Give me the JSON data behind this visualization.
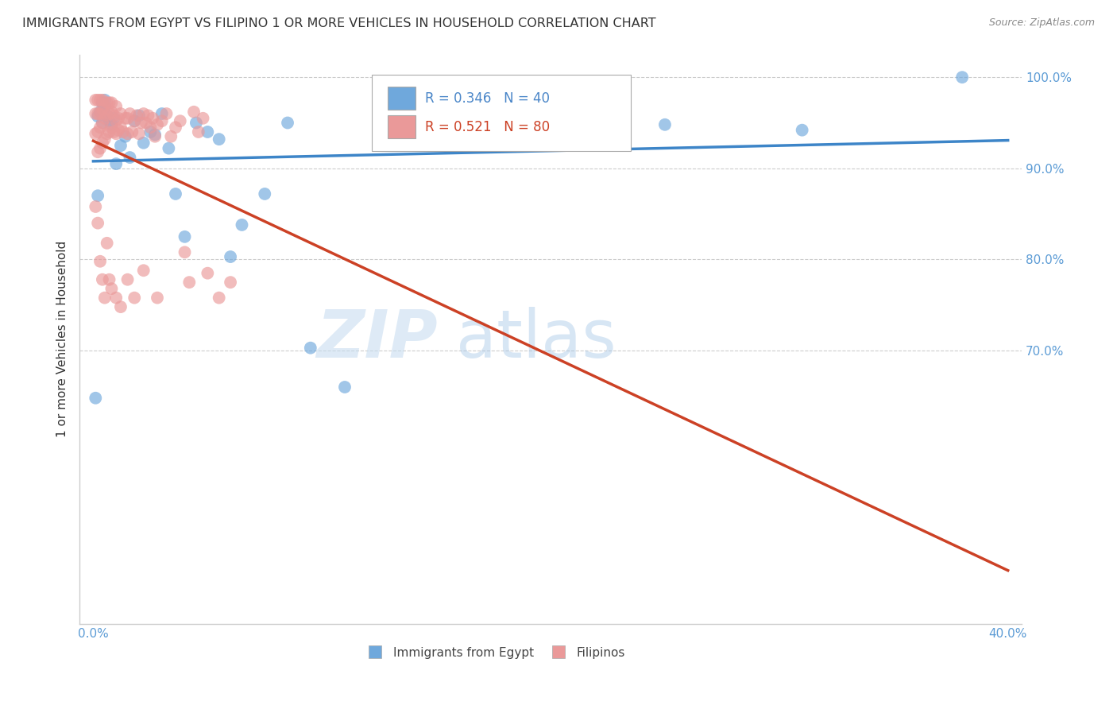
{
  "title": "IMMIGRANTS FROM EGYPT VS FILIPINO 1 OR MORE VEHICLES IN HOUSEHOLD CORRELATION CHART",
  "source": "Source: ZipAtlas.com",
  "ylabel": "1 or more Vehicles in Household",
  "x_min": 0.0,
  "x_max": 0.4,
  "y_min": 0.4,
  "y_max": 1.02,
  "x_tick_positions": [
    0.0,
    0.05,
    0.1,
    0.15,
    0.2,
    0.25,
    0.3,
    0.35,
    0.4
  ],
  "x_tick_labels": [
    "0.0%",
    "",
    "",
    "",
    "",
    "",
    "",
    "",
    "40.0%"
  ],
  "y_tick_positions": [
    0.7,
    0.8,
    0.9,
    1.0
  ],
  "y_tick_labels": [
    "70.0%",
    "80.0%",
    "90.0%",
    "100.0%"
  ],
  "blue_color": "#6fa8dc",
  "pink_color": "#ea9999",
  "blue_line_color": "#3d85c8",
  "pink_line_color": "#cc4125",
  "legend_text_blue": "#4a86c8",
  "legend_text_pink": "#cc4125",
  "grid_color": "#cccccc",
  "blue_R": 0.346,
  "blue_N": 40,
  "pink_R": 0.521,
  "pink_N": 80,
  "blue_x": [
    0.001,
    0.002,
    0.002,
    0.003,
    0.004,
    0.004,
    0.005,
    0.005,
    0.006,
    0.007,
    0.008,
    0.009,
    0.01,
    0.012,
    0.014,
    0.016,
    0.018,
    0.02,
    0.022,
    0.025,
    0.027,
    0.03,
    0.033,
    0.036,
    0.04,
    0.045,
    0.05,
    0.055,
    0.06,
    0.065,
    0.075,
    0.085,
    0.095,
    0.11,
    0.13,
    0.16,
    0.2,
    0.25,
    0.31,
    0.38
  ],
  "blue_y": [
    0.648,
    0.87,
    0.957,
    0.962,
    0.972,
    0.95,
    0.968,
    0.975,
    0.958,
    0.952,
    0.948,
    0.955,
    0.905,
    0.925,
    0.935,
    0.912,
    0.952,
    0.958,
    0.928,
    0.94,
    0.937,
    0.96,
    0.922,
    0.872,
    0.825,
    0.95,
    0.94,
    0.932,
    0.803,
    0.838,
    0.872,
    0.95,
    0.703,
    0.66,
    0.942,
    0.942,
    0.945,
    0.948,
    0.942,
    1.0
  ],
  "pink_x": [
    0.001,
    0.001,
    0.001,
    0.002,
    0.002,
    0.002,
    0.002,
    0.003,
    0.003,
    0.003,
    0.003,
    0.004,
    0.004,
    0.004,
    0.004,
    0.005,
    0.005,
    0.005,
    0.006,
    0.006,
    0.006,
    0.007,
    0.007,
    0.007,
    0.008,
    0.008,
    0.008,
    0.009,
    0.009,
    0.01,
    0.01,
    0.01,
    0.011,
    0.011,
    0.012,
    0.012,
    0.013,
    0.014,
    0.015,
    0.015,
    0.016,
    0.017,
    0.018,
    0.019,
    0.02,
    0.021,
    0.022,
    0.023,
    0.024,
    0.025,
    0.026,
    0.027,
    0.028,
    0.03,
    0.032,
    0.034,
    0.036,
    0.038,
    0.04,
    0.042,
    0.044,
    0.046,
    0.048,
    0.05,
    0.055,
    0.06,
    0.001,
    0.002,
    0.003,
    0.004,
    0.005,
    0.006,
    0.007,
    0.008,
    0.01,
    0.012,
    0.015,
    0.018,
    0.022,
    0.028
  ],
  "pink_y": [
    0.938,
    0.96,
    0.975,
    0.918,
    0.94,
    0.96,
    0.975,
    0.922,
    0.945,
    0.96,
    0.975,
    0.928,
    0.95,
    0.965,
    0.975,
    0.932,
    0.955,
    0.968,
    0.938,
    0.958,
    0.972,
    0.94,
    0.96,
    0.972,
    0.945,
    0.962,
    0.972,
    0.94,
    0.958,
    0.938,
    0.952,
    0.968,
    0.942,
    0.955,
    0.945,
    0.96,
    0.94,
    0.955,
    0.938,
    0.955,
    0.96,
    0.94,
    0.952,
    0.958,
    0.938,
    0.95,
    0.96,
    0.95,
    0.958,
    0.945,
    0.955,
    0.935,
    0.948,
    0.952,
    0.96,
    0.935,
    0.945,
    0.952,
    0.808,
    0.775,
    0.962,
    0.94,
    0.955,
    0.785,
    0.758,
    0.775,
    0.858,
    0.84,
    0.798,
    0.778,
    0.758,
    0.818,
    0.778,
    0.768,
    0.758,
    0.748,
    0.778,
    0.758,
    0.788,
    0.758
  ]
}
